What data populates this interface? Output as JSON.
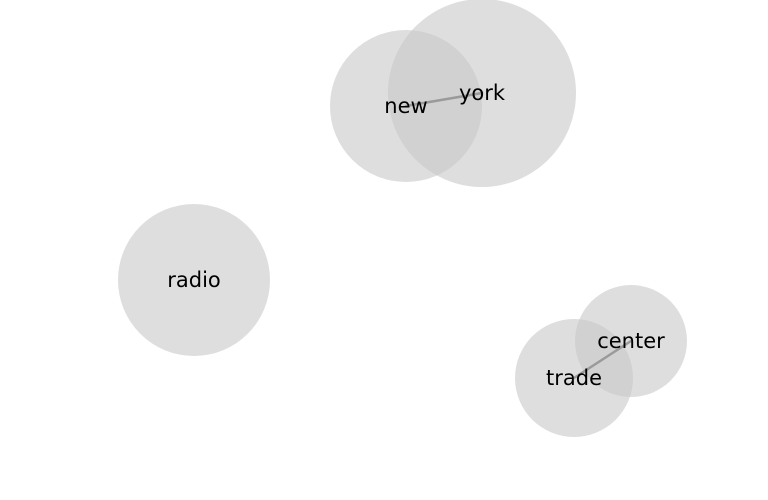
{
  "nodes": [
    {
      "id": "york",
      "label": "york"
    },
    {
      "id": "new",
      "label": "new"
    },
    {
      "id": "radio",
      "label": "radio"
    },
    {
      "id": "center",
      "label": "center"
    },
    {
      "id": "trade",
      "label": "trade"
    }
  ],
  "edges": [
    {
      "source": "new",
      "target": "york"
    },
    {
      "source": "trade",
      "target": "center"
    }
  ]
}
